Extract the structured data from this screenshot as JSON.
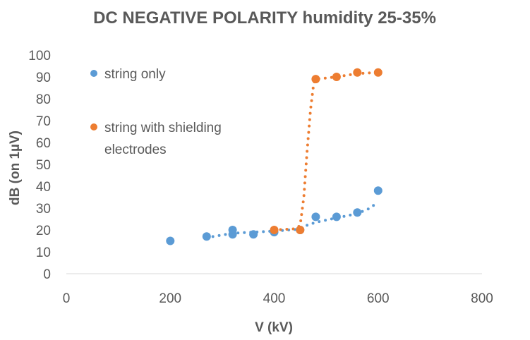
{
  "chart_data": {
    "type": "scatter",
    "title": "DC NEGATIVE POLARITY humidity 25-35%",
    "xlabel": "V (kV)",
    "ylabel": "dB (on 1µV)",
    "xlim": [
      0,
      800
    ],
    "ylim": [
      0,
      100
    ],
    "xticks": [
      0,
      200,
      400,
      600,
      800
    ],
    "yticks": [
      0,
      10,
      20,
      30,
      40,
      50,
      60,
      70,
      80,
      90,
      100
    ],
    "grid": false,
    "legend_position": "inside-left",
    "series": [
      {
        "name": "string only",
        "color": "#5B9BD5",
        "points": [
          [
            200,
            15
          ],
          [
            270,
            17
          ],
          [
            320,
            18
          ],
          [
            320,
            20
          ],
          [
            360,
            18
          ],
          [
            400,
            19
          ],
          [
            450,
            20
          ],
          [
            480,
            26
          ],
          [
            520,
            26
          ],
          [
            560,
            28
          ],
          [
            600,
            38
          ]
        ],
        "trend": [
          [
            270,
            16.5
          ],
          [
            320,
            18.5
          ],
          [
            360,
            19
          ],
          [
            400,
            19.5
          ],
          [
            440,
            20.2
          ],
          [
            480,
            23.5
          ],
          [
            520,
            25.5
          ],
          [
            560,
            27.5
          ],
          [
            585,
            30
          ],
          [
            600,
            33
          ]
        ]
      },
      {
        "name": "string with shielding electrodes",
        "color": "#ED7D31",
        "points": [
          [
            400,
            20
          ],
          [
            450,
            20
          ],
          [
            480,
            89
          ],
          [
            520,
            90
          ],
          [
            560,
            92
          ],
          [
            600,
            92
          ]
        ],
        "trend": [
          [
            400,
            20
          ],
          [
            440,
            20.5
          ],
          [
            450,
            22
          ],
          [
            457,
            35
          ],
          [
            463,
            55
          ],
          [
            470,
            75
          ],
          [
            476,
            87
          ],
          [
            480,
            89
          ],
          [
            520,
            90
          ],
          [
            560,
            91.5
          ],
          [
            600,
            92
          ]
        ]
      }
    ]
  }
}
